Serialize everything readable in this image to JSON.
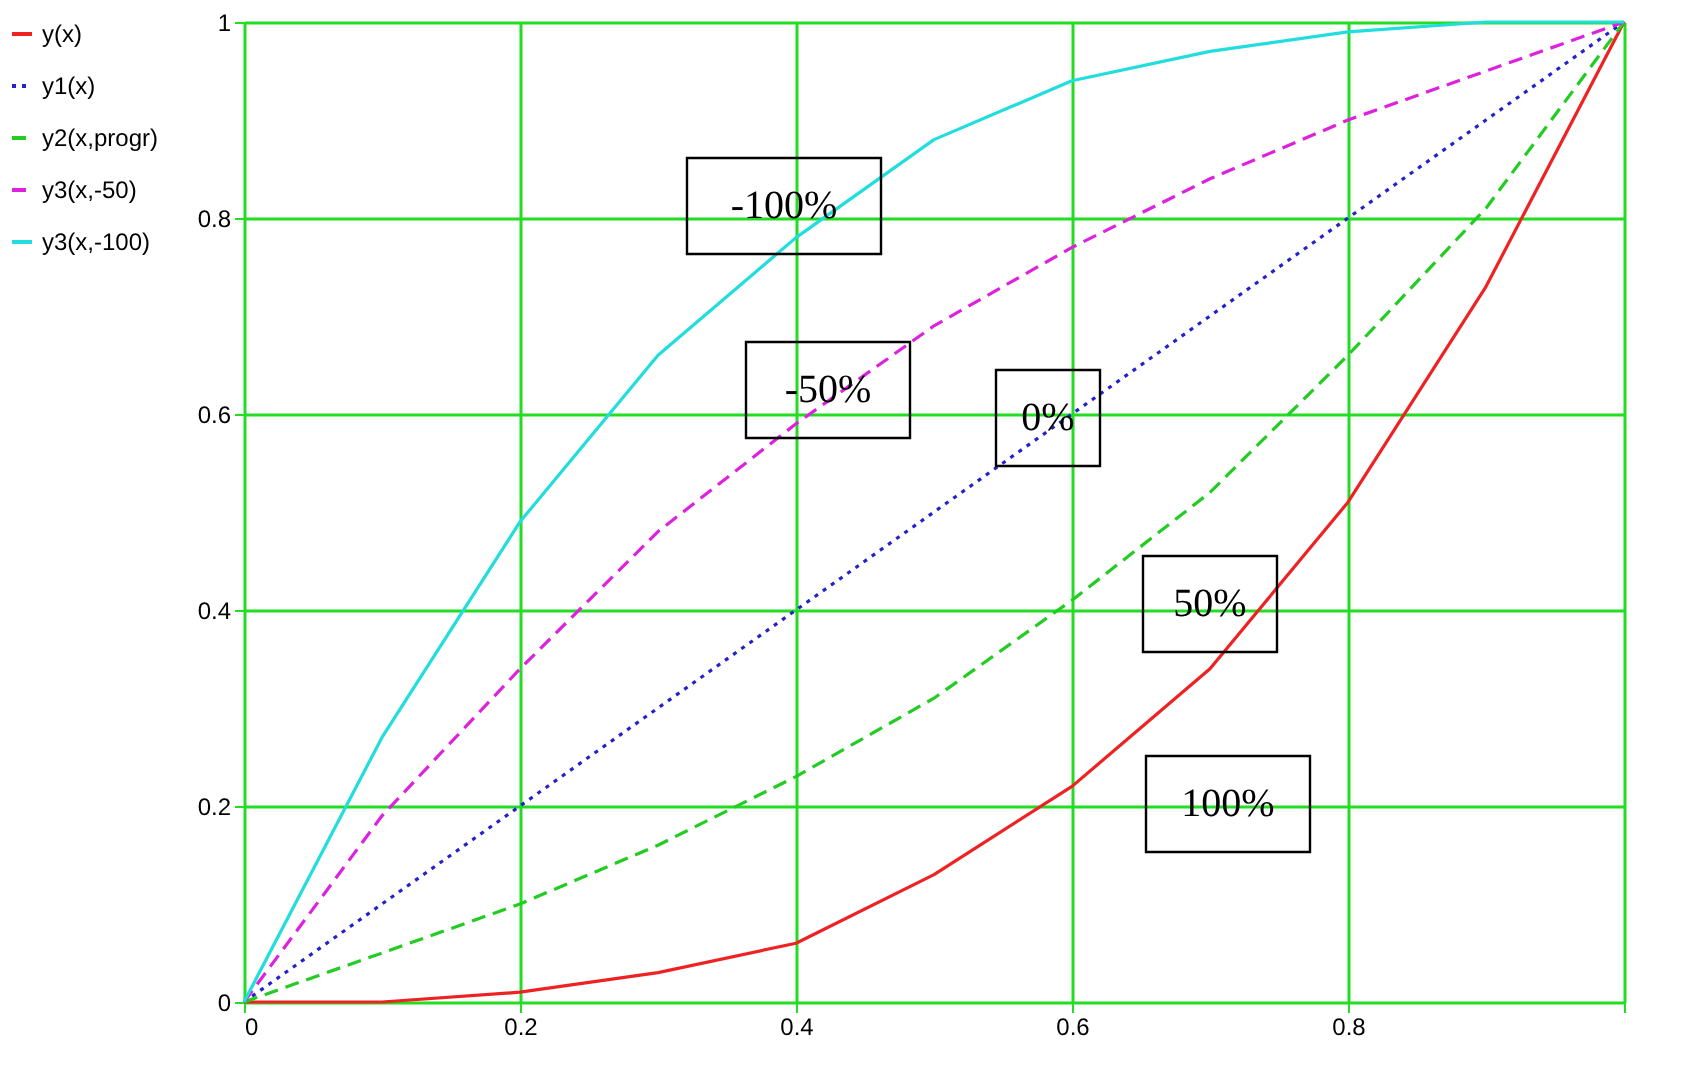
{
  "chart_data": {
    "type": "line",
    "x": [
      0,
      0.1,
      0.2,
      0.3,
      0.4,
      0.5,
      0.6,
      0.7,
      0.8,
      0.9,
      1
    ],
    "series": [
      {
        "name": "y(x)",
        "color": "#ee2222",
        "line_style": "solid",
        "values": [
          0,
          0,
          0.01,
          0.03,
          0.06,
          0.13,
          0.22,
          0.34,
          0.51,
          0.73,
          1
        ]
      },
      {
        "name": "y1(x)",
        "color": "#2222cc",
        "line_style": "dotted",
        "values": [
          0,
          0.1,
          0.2,
          0.3,
          0.4,
          0.5,
          0.6,
          0.7,
          0.8,
          0.9,
          1
        ]
      },
      {
        "name": "y2(x,progr)",
        "color": "#22cc22",
        "line_style": "dashed",
        "values": [
          0,
          0.05,
          0.1,
          0.16,
          0.23,
          0.31,
          0.41,
          0.52,
          0.66,
          0.81,
          1
        ]
      },
      {
        "name": "y3(x,-50)",
        "color": "#dd22dd",
        "line_style": "dashed",
        "values": [
          0,
          0.19,
          0.34,
          0.48,
          0.59,
          0.69,
          0.77,
          0.84,
          0.9,
          0.95,
          1
        ]
      },
      {
        "name": "y3(x,-100)",
        "color": "#22dddd",
        "line_style": "solid",
        "values": [
          0,
          0.27,
          0.49,
          0.66,
          0.78,
          0.88,
          0.94,
          0.97,
          0.99,
          1,
          1
        ]
      }
    ],
    "annotations": [
      "-100%",
      "-50%",
      "0%",
      "50%",
      "100%"
    ],
    "xlim": [
      0,
      1
    ],
    "ylim": [
      0,
      1
    ],
    "xticks": [
      0,
      0.2,
      0.4,
      0.6,
      0.8,
      {
        "value": 1,
        "label": null
      }
    ],
    "yticks": [
      0,
      0.2,
      0.4,
      0.6,
      0.8,
      1
    ],
    "grid": true,
    "legend": "left"
  }
}
